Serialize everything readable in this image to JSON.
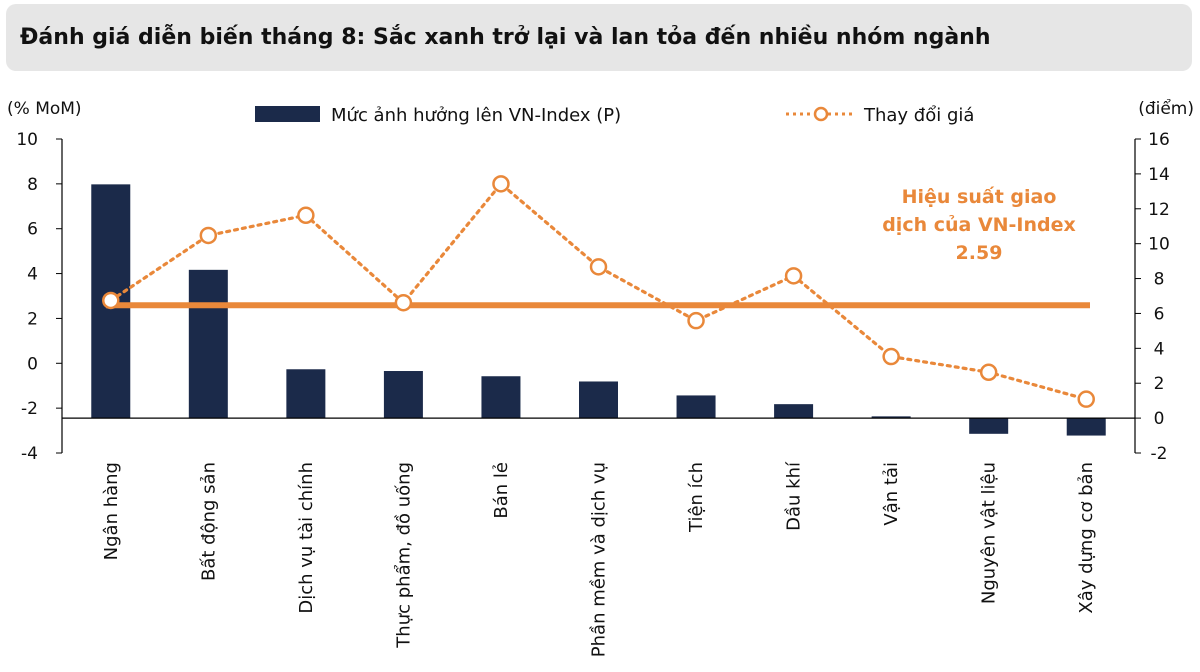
{
  "header": {
    "title": "Đánh giá diễn biến tháng 8: Sắc xanh trở lại và lan tỏa đến nhiều nhóm ngành"
  },
  "colors": {
    "bar": "#1b2a4a",
    "line": "#e9883a",
    "axis": "#000000",
    "title_bg": "#e6e6e6"
  },
  "chart_data": {
    "type": "bar",
    "title": "Đánh giá diễn biến tháng 8: Sắc xanh trở lại và lan tỏa đến nhiều nhóm ngành",
    "left_axis_unit": "(% MoM)",
    "right_axis_unit": "(điểm)",
    "left_ylim": [
      -4,
      10
    ],
    "left_ticks": [
      "10",
      "8",
      "6",
      "4",
      "2",
      "0",
      "-2",
      "-4"
    ],
    "left_tick_values": [
      10,
      8,
      6,
      4,
      2,
      0,
      -2,
      -4
    ],
    "right_ylim": [
      -2,
      16
    ],
    "right_ticks": [
      "16",
      "14",
      "12",
      "10",
      "8",
      "6",
      "4",
      "2",
      "0",
      "-2"
    ],
    "right_tick_values": [
      16,
      14,
      12,
      10,
      8,
      6,
      4,
      2,
      0,
      -2
    ],
    "categories": [
      "Ngân hàng",
      "Bất động sản",
      "Dịch vụ tài chính",
      "Thực phẩm, đồ uống",
      "Bán lẻ",
      "Phần mềm và dịch vụ",
      "Tiện ích",
      "Dầu khí",
      "Vận tải",
      "Nguyên vật liệu",
      "Xây dựng cơ bản"
    ],
    "series": [
      {
        "name": "Mức ảnh hưởng lên VN-Index (P)",
        "kind": "bar",
        "axis": "right",
        "values": [
          13.4,
          8.5,
          2.8,
          2.7,
          2.4,
          2.1,
          1.3,
          0.8,
          0.1,
          -0.9,
          -1.0
        ]
      },
      {
        "name": "Thay đổi giá",
        "kind": "line",
        "style": "dotted-with-circle-markers",
        "axis": "left",
        "values": [
          2.8,
          5.7,
          6.6,
          2.7,
          8.0,
          4.3,
          1.9,
          3.9,
          0.3,
          -0.4,
          -1.6
        ]
      }
    ],
    "reference_line": {
      "value": 2.59,
      "axis": "left",
      "label_lines": [
        "Hiệu suất giao",
        "dịch của VN-Index",
        "2.59"
      ]
    },
    "legend_position": "top",
    "grid": false
  }
}
